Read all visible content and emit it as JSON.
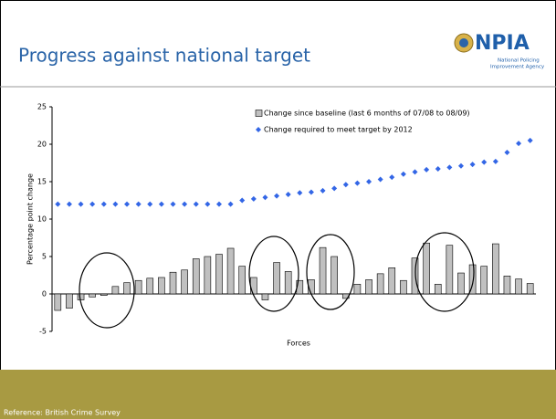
{
  "header": {
    "title": "Progress against national target",
    "logo": {
      "name": "NPIA",
      "line1": "National Policing",
      "line2": "Improvement Agency"
    }
  },
  "chart_data": {
    "type": "bar",
    "xlabel": "Forces",
    "ylabel": "Percentage point change",
    "ylim": [
      -5,
      25
    ],
    "yticks": [
      -5,
      0,
      5,
      10,
      15,
      20,
      25
    ],
    "grid": false,
    "legend": "top-right",
    "series": [
      {
        "name": "Change since baseline (last 6 months of 07/08 to 08/09)",
        "type": "bar",
        "color": "#c0c0c0",
        "values": [
          -2.2,
          -1.9,
          -0.8,
          -0.4,
          -0.2,
          1.0,
          1.5,
          1.8,
          2.1,
          2.2,
          2.9,
          3.2,
          4.7,
          5.0,
          5.3,
          6.1,
          3.7,
          2.2,
          -0.8,
          4.2,
          3.0,
          1.8,
          1.9,
          6.2,
          5.0,
          -0.6,
          1.3,
          1.9,
          2.7,
          3.5,
          1.8,
          4.8,
          6.8,
          1.3,
          6.5,
          2.8,
          3.9,
          3.7,
          6.7,
          2.4,
          2.0,
          1.4
        ]
      },
      {
        "name": "Change required to meet target by 2012",
        "type": "scatter",
        "color": "#3366e6",
        "values": [
          12.0,
          12.0,
          12.0,
          12.0,
          12.0,
          12.0,
          12.0,
          12.0,
          12.0,
          12.0,
          12.0,
          12.0,
          12.0,
          12.0,
          12.0,
          12.0,
          12.5,
          12.7,
          12.9,
          13.1,
          13.3,
          13.5,
          13.6,
          13.8,
          14.1,
          14.6,
          14.8,
          15.0,
          15.3,
          15.6,
          16.0,
          16.3,
          16.6,
          16.7,
          16.9,
          17.1,
          17.3,
          17.6,
          17.7,
          18.9,
          20.1,
          20.5
        ]
      }
    ]
  },
  "footer": {
    "reference": "Reference: British Crime Survey"
  }
}
